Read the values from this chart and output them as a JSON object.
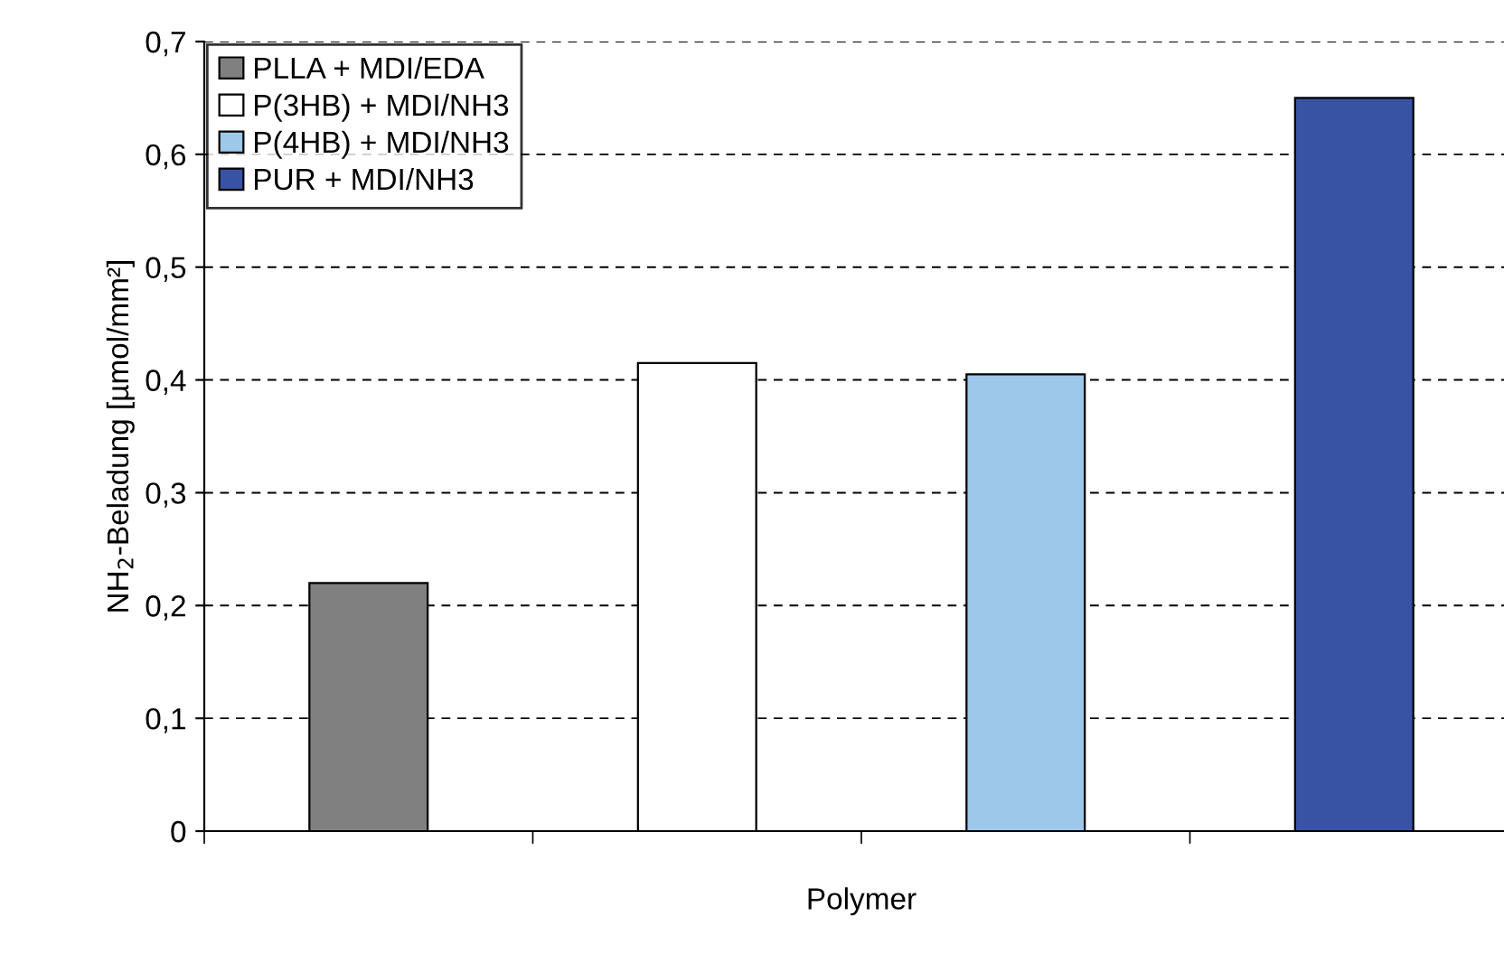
{
  "chart_data": {
    "type": "bar",
    "xlabel": "Polymer",
    "ylabel": "NH$_{2}$-Beladung [µmol/mm²]",
    "categories": [
      null,
      null,
      null,
      null
    ],
    "series": [
      {
        "name": "PLLA + MDI/EDA",
        "color": "#808080",
        "values": [
          0.22,
          null,
          null,
          null
        ]
      },
      {
        "name": "P(3HB) + MDI/NH3",
        "color": "#ffffff",
        "values": [
          null,
          0.415,
          null,
          null
        ]
      },
      {
        "name": "P(4HB) + MDI/NH3",
        "color": "#9dc8ea",
        "values": [
          null,
          null,
          0.405,
          null
        ]
      },
      {
        "name": "PUR + MDI/NH3",
        "color": "#3953a4",
        "values": [
          null,
          null,
          null,
          0.65
        ]
      }
    ],
    "ylim": [
      0,
      0.7
    ],
    "yticks": [
      0,
      {
        "value": 0.1,
        "label": "0,1"
      },
      {
        "value": 0.2,
        "label": "0,2"
      },
      {
        "value": 0.3,
        "label": "0,3"
      },
      {
        "value": 0.4,
        "label": "0,4"
      },
      {
        "value": 0.5,
        "label": "0,5"
      },
      {
        "value": 0.6,
        "label": "0,6"
      },
      {
        "value": 0.7,
        "label": "0,7"
      }
    ],
    "grid": "y",
    "line_style": "dashed",
    "legend": "top left"
  }
}
